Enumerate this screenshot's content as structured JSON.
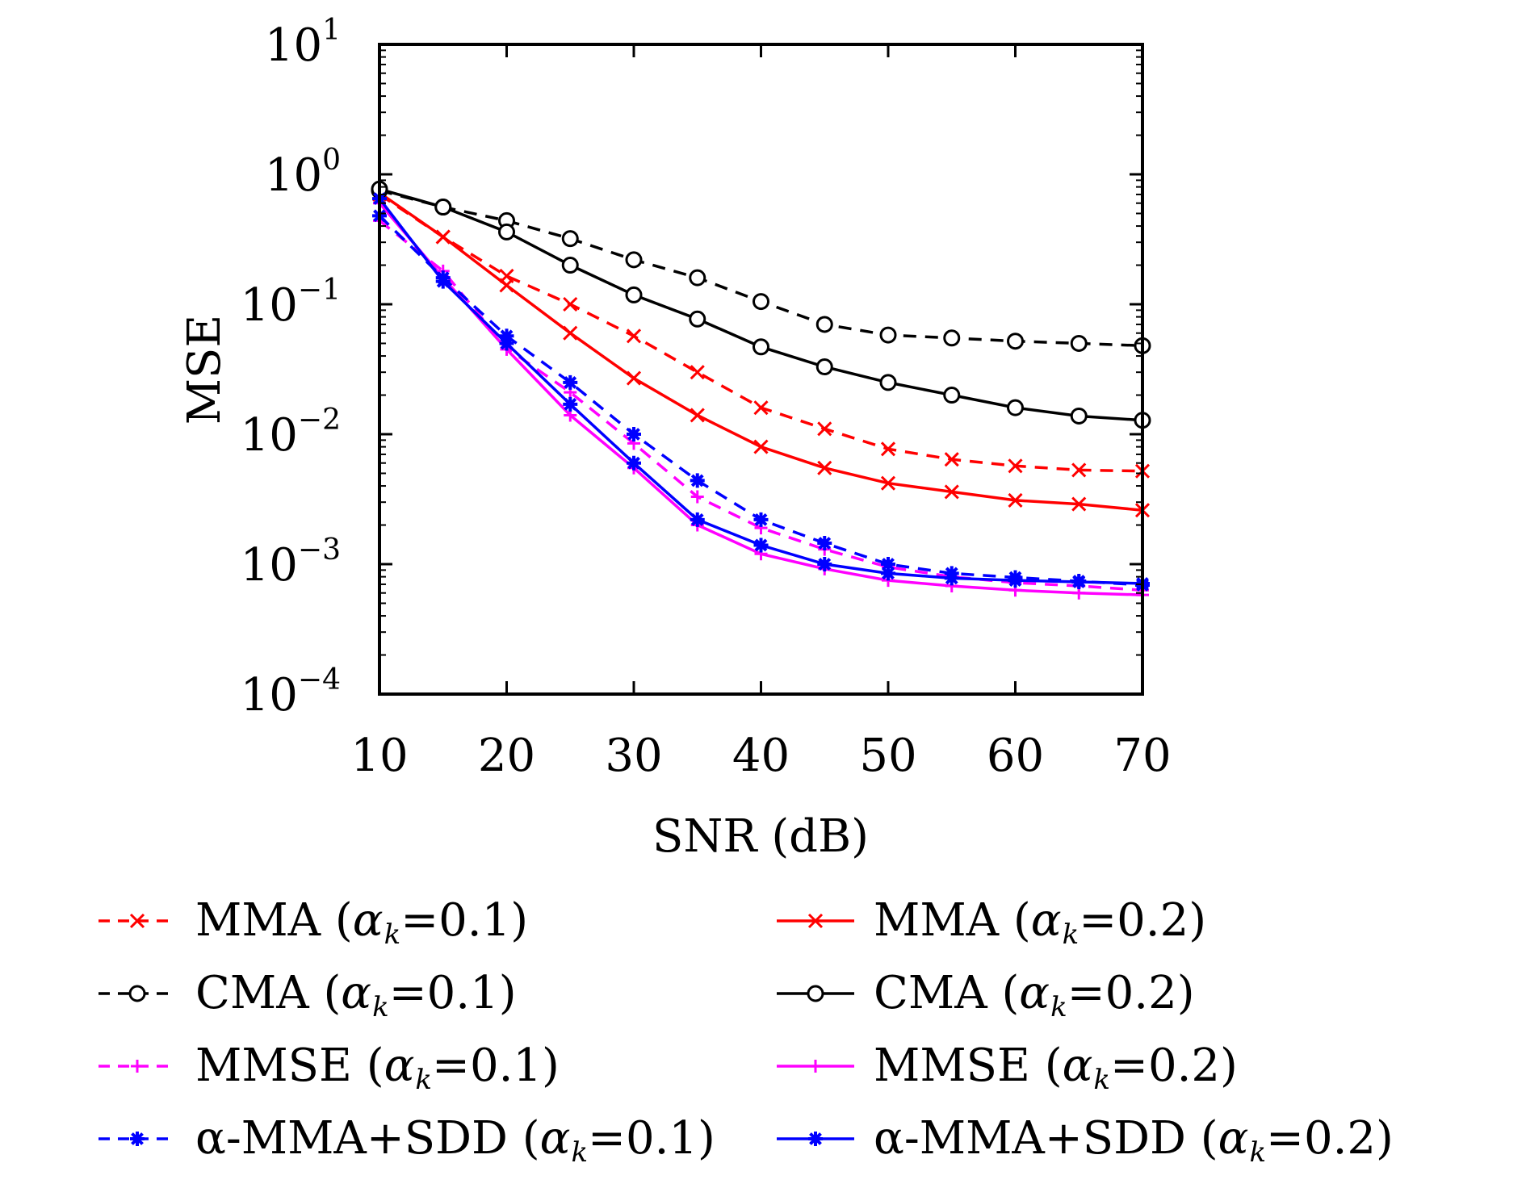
{
  "chart_data": {
    "type": "line",
    "title": "",
    "xlabel": "SNR (dB)",
    "ylabel": "MSE",
    "xlim": [
      10,
      70
    ],
    "ylim": [
      0.0001,
      10
    ],
    "yscale": "log",
    "grid": false,
    "legend_placement": "below",
    "x_ticks": [
      "10",
      "20",
      "30",
      "40",
      "50",
      "60",
      "70"
    ],
    "x_tick_values": [
      10,
      20,
      30,
      40,
      50,
      60,
      70
    ],
    "y_ticks": [
      {
        "value": 10,
        "base": "10",
        "exp": "1"
      },
      {
        "value": 1,
        "base": "10",
        "exp": "0"
      },
      {
        "value": 0.1,
        "base": "10",
        "exp": "−1"
      },
      {
        "value": 0.01,
        "base": "10",
        "exp": "−2"
      },
      {
        "value": 0.001,
        "base": "10",
        "exp": "−3"
      },
      {
        "value": 0.0001,
        "base": "10",
        "exp": "−4"
      }
    ],
    "x": [
      10,
      15,
      20,
      25,
      30,
      35,
      40,
      45,
      50,
      55,
      60,
      65,
      70
    ],
    "series": [
      {
        "legend_name": "MMA",
        "alpha_value": "0.1",
        "color": "#ff0000",
        "dash": "dashed",
        "marker": "x",
        "values": [
          0.7,
          0.33,
          0.165,
          0.1,
          0.057,
          0.03,
          0.016,
          0.011,
          0.0077,
          0.0064,
          0.0057,
          0.0053,
          0.0052
        ]
      },
      {
        "legend_name": "MMA",
        "alpha_value": "0.2",
        "color": "#ff0000",
        "dash": "solid",
        "marker": "x",
        "values": [
          0.72,
          0.33,
          0.14,
          0.06,
          0.027,
          0.014,
          0.008,
          0.0055,
          0.0042,
          0.0036,
          0.0031,
          0.0029,
          0.0026
        ]
      },
      {
        "legend_name": "CMA",
        "alpha_value": "0.1",
        "color": "#000000",
        "dash": "dashed",
        "marker": "circle",
        "values": [
          0.75,
          0.56,
          0.44,
          0.32,
          0.22,
          0.16,
          0.105,
          0.07,
          0.058,
          0.055,
          0.052,
          0.05,
          0.048
        ]
      },
      {
        "legend_name": "CMA",
        "alpha_value": "0.2",
        "color": "#000000",
        "dash": "solid",
        "marker": "circle",
        "values": [
          0.77,
          0.56,
          0.36,
          0.2,
          0.118,
          0.077,
          0.047,
          0.033,
          0.025,
          0.02,
          0.016,
          0.0138,
          0.0128
        ]
      },
      {
        "legend_name": "MMSE",
        "alpha_value": "0.1",
        "color": "#ff00ff",
        "dash": "dashed",
        "marker": "plus",
        "values": [
          0.44,
          0.18,
          0.046,
          0.021,
          0.0085,
          0.0033,
          0.0019,
          0.0013,
          0.00095,
          0.0008,
          0.00072,
          0.00068,
          0.00063
        ]
      },
      {
        "legend_name": "MMSE",
        "alpha_value": "0.2",
        "color": "#ff00ff",
        "dash": "solid",
        "marker": "plus",
        "values": [
          0.6,
          0.16,
          0.045,
          0.014,
          0.0055,
          0.002,
          0.0012,
          0.00092,
          0.00075,
          0.00068,
          0.00063,
          0.0006,
          0.00058
        ]
      },
      {
        "legend_name": "α-MMA+SDD",
        "alpha_value": "0.1",
        "color": "#0000ff",
        "dash": "dashed",
        "marker": "asterisk",
        "values": [
          0.48,
          0.16,
          0.057,
          0.025,
          0.01,
          0.0044,
          0.0022,
          0.00145,
          0.001,
          0.00085,
          0.00079,
          0.00074,
          0.00069
        ]
      },
      {
        "legend_name": "α-MMA+SDD",
        "alpha_value": "0.2",
        "color": "#0000ff",
        "dash": "solid",
        "marker": "asterisk",
        "values": [
          0.65,
          0.15,
          0.05,
          0.017,
          0.006,
          0.0022,
          0.0014,
          0.001,
          0.00085,
          0.00078,
          0.00075,
          0.00073,
          0.00071
        ]
      }
    ]
  },
  "legend": {
    "alpha_symbol": "α",
    "alpha_subscript": "k",
    "equals": "=",
    "items": [
      {
        "name": "MMA",
        "value": "0.1",
        "color": "#ff0000",
        "dash": "dashed",
        "marker": "x"
      },
      {
        "name": "MMA",
        "value": "0.2",
        "color": "#ff0000",
        "dash": "solid",
        "marker": "x"
      },
      {
        "name": "CMA",
        "value": "0.1",
        "color": "#000000",
        "dash": "dashed",
        "marker": "circle"
      },
      {
        "name": "CMA",
        "value": "0.2",
        "color": "#000000",
        "dash": "solid",
        "marker": "circle"
      },
      {
        "name": "MMSE",
        "value": "0.1",
        "color": "#ff00ff",
        "dash": "dashed",
        "marker": "plus"
      },
      {
        "name": "MMSE",
        "value": "0.2",
        "color": "#ff00ff",
        "dash": "solid",
        "marker": "plus"
      },
      {
        "name": "α-MMA+SDD",
        "value": "0.1",
        "color": "#0000ff",
        "dash": "dashed",
        "marker": "asterisk"
      },
      {
        "name": "α-MMA+SDD",
        "value": "0.2",
        "color": "#0000ff",
        "dash": "solid",
        "marker": "asterisk"
      }
    ]
  }
}
